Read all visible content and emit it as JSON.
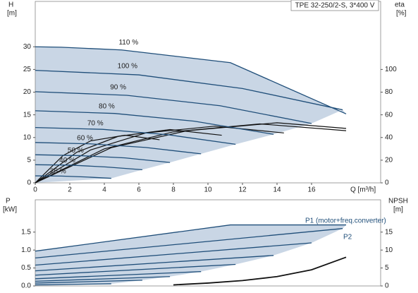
{
  "chart_data": [
    {
      "type": "line",
      "title": "TPE 32-250/2-S, 3*400 V",
      "ylabel": "H",
      "yunit": "[m]",
      "y2label": "eta",
      "y2unit": "[%]",
      "xlabel": "Q [m³/h]",
      "xlim": [
        0,
        20
      ],
      "xticks": [
        0,
        2,
        4,
        6,
        8,
        10,
        12,
        14,
        16
      ],
      "ylim": [
        0,
        40
      ],
      "yticks": [
        0,
        5,
        10,
        15,
        20,
        25,
        30
      ],
      "y2lim": [
        0,
        160
      ],
      "y2ticks": [
        0,
        20,
        40,
        60,
        80,
        100
      ],
      "fill_color": "#c9d6e5",
      "series": [
        {
          "name": "110 %",
          "color": "#1f4e79",
          "x": [
            0,
            1.5,
            5,
            11.3,
            18
          ],
          "values": [
            30,
            29.9,
            29.3,
            26.5,
            15.2
          ]
        },
        {
          "name": "100 %",
          "color": "#1f4e79",
          "x": [
            0,
            6,
            12,
            17.8
          ],
          "values": [
            24.8,
            23.8,
            20.8,
            16.1
          ]
        },
        {
          "name": "90 %",
          "color": "#1f4e79",
          "x": [
            0,
            5.3,
            10.7,
            16
          ],
          "values": [
            20.1,
            19.3,
            17.0,
            13.1
          ]
        },
        {
          "name": "80 %",
          "color": "#1f4e79",
          "x": [
            0,
            4.6,
            9.2,
            13.8
          ],
          "values": [
            15.9,
            15.3,
            13.6,
            10.7
          ]
        },
        {
          "name": "70 %",
          "color": "#1f4e79",
          "x": [
            0,
            3.9,
            7.7,
            11.6
          ],
          "values": [
            12.2,
            11.8,
            10.6,
            8.5
          ]
        },
        {
          "name": "60 %",
          "color": "#1f4e79",
          "x": [
            0,
            3.2,
            6.4,
            9.6
          ],
          "values": [
            8.9,
            8.6,
            7.8,
            6.4
          ]
        },
        {
          "name": "50 %",
          "color": "#1f4e79",
          "x": [
            0,
            2.6,
            5.2,
            7.8
          ],
          "values": [
            6.2,
            6.0,
            5.5,
            4.5
          ]
        },
        {
          "name": "40 %",
          "color": "#1f4e79",
          "x": [
            0,
            2.1,
            4.1,
            6.2
          ],
          "values": [
            4.0,
            3.9,
            3.5,
            2.9
          ]
        },
        {
          "name": "25 %",
          "color": "#1f4e79",
          "x": [
            0,
            1.5,
            2.9,
            4.4
          ],
          "values": [
            1.55,
            1.5,
            1.3,
            1.0
          ]
        }
      ],
      "eta_curves": [
        {
          "axis": "y2",
          "color": "#111111",
          "x": [
            0,
            4.4,
            8.8,
            14,
            18
          ],
          "values": [
            0,
            31,
            46,
            53,
            48
          ]
        },
        {
          "axis": "y2",
          "color": "#111111",
          "x": [
            0,
            4,
            8,
            13,
            18
          ],
          "values": [
            0,
            30,
            45,
            52,
            46
          ]
        },
        {
          "axis": "y2",
          "color": "#111111",
          "x": [
            0,
            3.2,
            6.4,
            10.4,
            14.4
          ],
          "values": [
            0,
            29,
            44,
            50,
            44
          ]
        },
        {
          "axis": "y2",
          "color": "#111111",
          "x": [
            0,
            2.4,
            4.8,
            7.8,
            10.8
          ],
          "values": [
            0,
            27,
            41,
            47,
            42
          ]
        },
        {
          "axis": "y2",
          "color": "#111111",
          "x": [
            0,
            1.6,
            3.2,
            5.2,
            7.2
          ],
          "values": [
            0,
            24,
            37,
            42,
            38
          ]
        }
      ]
    },
    {
      "type": "line",
      "ylabel": "P",
      "yunit": "[kW]",
      "y2label": "NPSH",
      "y2unit": "[m]",
      "xlim": [
        0,
        20
      ],
      "ylim": [
        0,
        2.4
      ],
      "yticks": [
        {
          "value": 0,
          "label": "0.0"
        },
        0.5,
        {
          "value": 1,
          "label": "1.0"
        },
        1.5
      ],
      "y2lim": [
        0,
        24
      ],
      "y2ticks": [
        0,
        5,
        10,
        15
      ],
      "fill_color": "#c9d6e5",
      "annotations": [
        "P1 (motor+freq.converter)",
        "P2"
      ],
      "series": [
        {
          "color": "#1f4e79",
          "x": [
            0,
            11.3,
            18
          ],
          "values": [
            0.97,
            1.7,
            1.7
          ]
        },
        {
          "color": "#1f4e79",
          "x": [
            0,
            17.8
          ],
          "values": [
            0.78,
            1.6
          ]
        },
        {
          "color": "#1f4e79",
          "x": [
            0,
            16
          ],
          "values": [
            0.58,
            1.2
          ]
        },
        {
          "color": "#1f4e79",
          "x": [
            0,
            13.8
          ],
          "values": [
            0.42,
            0.85
          ]
        },
        {
          "color": "#1f4e79",
          "x": [
            0,
            11.6
          ],
          "values": [
            0.3,
            0.6
          ]
        },
        {
          "color": "#1f4e79",
          "x": [
            0,
            9.6
          ],
          "values": [
            0.2,
            0.4
          ]
        },
        {
          "color": "#1f4e79",
          "x": [
            0,
            7.8
          ],
          "values": [
            0.13,
            0.26
          ]
        },
        {
          "color": "#1f4e79",
          "x": [
            0,
            6.2
          ],
          "values": [
            0.08,
            0.16
          ]
        },
        {
          "color": "#1f4e79",
          "x": [
            0,
            4.4
          ],
          "values": [
            0.03,
            0.06
          ]
        }
      ],
      "npsh": {
        "axis": "y2",
        "color": "#111111",
        "x": [
          8,
          10,
          12,
          14,
          16,
          18
        ],
        "values": [
          0.3,
          0.8,
          1.5,
          2.6,
          4.5,
          8
        ]
      }
    }
  ]
}
